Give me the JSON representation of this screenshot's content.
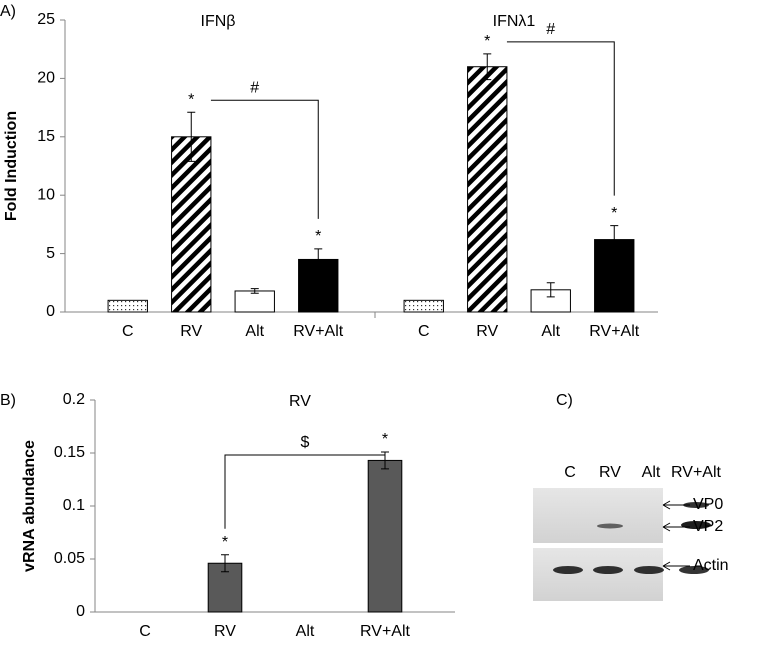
{
  "chart_data": [
    {
      "type": "bar",
      "label": "A)",
      "ylabel": "Fold Induction",
      "ylim": [
        0,
        25
      ],
      "yticks": [
        0,
        5,
        10,
        15,
        20,
        25
      ],
      "bracket_label": "#",
      "groups": [
        {
          "title": "IFNβ",
          "categories": [
            "C",
            "RV",
            "Alt",
            "RV+Alt"
          ],
          "values": [
            1,
            15,
            1.8,
            4.5
          ],
          "errors": [
            null,
            2.1,
            0.2,
            0.9
          ],
          "stars": [
            null,
            "*",
            null,
            "*"
          ]
        },
        {
          "title": "IFNλ1",
          "categories": [
            "C",
            "RV",
            "Alt",
            "RV+Alt"
          ],
          "values": [
            1,
            21,
            1.9,
            6.2
          ],
          "errors": [
            null,
            1.1,
            0.6,
            1.2
          ],
          "stars": [
            null,
            "*",
            null,
            "*"
          ]
        }
      ]
    },
    {
      "type": "bar",
      "label": "B)",
      "title": "RV",
      "ylabel": "vRNA abundance",
      "ylim": [
        0,
        0.2
      ],
      "yticks": [
        0,
        0.05,
        0.1,
        0.15,
        0.2
      ],
      "color": "#595959",
      "bracket_label": "$",
      "categories": [
        "C",
        "RV",
        "Alt",
        "RV+Alt"
      ],
      "values": [
        0,
        0.046,
        0,
        0.143
      ],
      "errors": [
        null,
        0.008,
        null,
        0.008
      ],
      "stars": [
        null,
        "*",
        null,
        "*"
      ]
    }
  ],
  "blot": {
    "label": "C)",
    "lanes": [
      "C",
      "RV",
      "Alt",
      "RV+Alt"
    ],
    "bands": [
      "VP0",
      "VP2",
      "Actin"
    ]
  }
}
